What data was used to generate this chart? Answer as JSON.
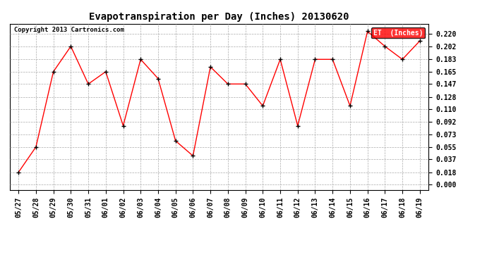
{
  "title": "Evapotranspiration per Day (Inches) 20130620",
  "copyright": "Copyright 2013 Cartronics.com",
  "legend_label": "ET  (Inches)",
  "x_labels": [
    "05/27",
    "05/28",
    "05/29",
    "05/30",
    "05/31",
    "06/01",
    "06/02",
    "06/03",
    "06/04",
    "06/05",
    "06/06",
    "06/07",
    "06/08",
    "06/09",
    "06/10",
    "06/11",
    "06/12",
    "06/13",
    "06/14",
    "06/15",
    "06/16",
    "06/17",
    "06/18",
    "06/19"
  ],
  "y_values": [
    0.018,
    0.055,
    0.165,
    0.202,
    0.147,
    0.165,
    0.086,
    0.183,
    0.155,
    0.064,
    0.042,
    0.172,
    0.147,
    0.147,
    0.115,
    0.183,
    0.086,
    0.183,
    0.183,
    0.115,
    0.224,
    0.202,
    0.183,
    0.21
  ],
  "y_ticks": [
    0.0,
    0.018,
    0.037,
    0.055,
    0.073,
    0.092,
    0.11,
    0.128,
    0.147,
    0.165,
    0.183,
    0.202,
    0.22
  ],
  "ylim": [
    -0.008,
    0.235
  ],
  "line_color": "red",
  "marker": "+",
  "marker_color": "black",
  "background_color": "#ffffff",
  "grid_color": "#aaaaaa",
  "title_fontsize": 10,
  "copyright_fontsize": 6.5,
  "tick_fontsize": 7,
  "legend_fontsize": 7,
  "legend_bg": "red",
  "legend_fg": "white",
  "fig_width": 6.9,
  "fig_height": 3.75,
  "dpi": 100
}
